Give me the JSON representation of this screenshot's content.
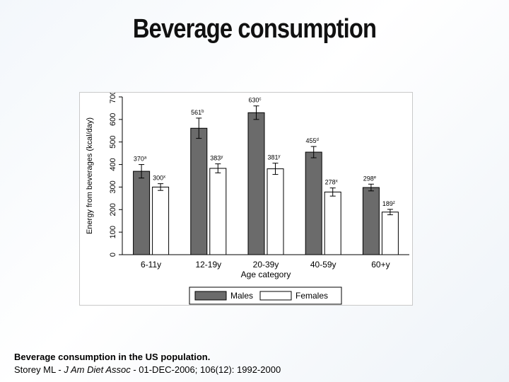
{
  "slide": {
    "title": "Beverage consumption"
  },
  "caption": {
    "title": "Beverage consumption in the US population.",
    "citation_prefix": "Storey ML - ",
    "journal": "J Am Diet Assoc",
    "citation_suffix": " - 01-DEC-2006; 106(12): 1992-2000"
  },
  "colors": {
    "males": "#6b6b6b",
    "females": "#ffffff",
    "bar_stroke": "#000000"
  },
  "chart_data": {
    "type": "bar",
    "title": "",
    "xlabel": "Age category",
    "ylabel": "Energy from beverages (kcal/day)",
    "categories": [
      "6-11y",
      "12-19y",
      "20-39y",
      "40-59y",
      "60+y"
    ],
    "ylim": [
      0,
      700
    ],
    "yticks": [
      0,
      100,
      200,
      300,
      400,
      500,
      600,
      700
    ],
    "series": [
      {
        "name": "Males",
        "values": [
          370,
          561,
          630,
          455,
          298
        ],
        "labels": [
          "370",
          "561",
          "630",
          "455",
          "298"
        ],
        "superscripts": [
          "a",
          "b",
          "c",
          "d",
          "e"
        ],
        "error": [
          30,
          45,
          30,
          25,
          15
        ]
      },
      {
        "name": "Females",
        "values": [
          300,
          383,
          381,
          278,
          189
        ],
        "labels": [
          "300",
          "383",
          "381",
          "278",
          "189"
        ],
        "superscripts": [
          "x",
          "y",
          "y",
          "x",
          "z"
        ],
        "error": [
          15,
          20,
          25,
          18,
          12
        ]
      }
    ],
    "legend": {
      "position": "bottom",
      "entries": [
        "Males",
        "Females"
      ]
    },
    "grid": false
  }
}
